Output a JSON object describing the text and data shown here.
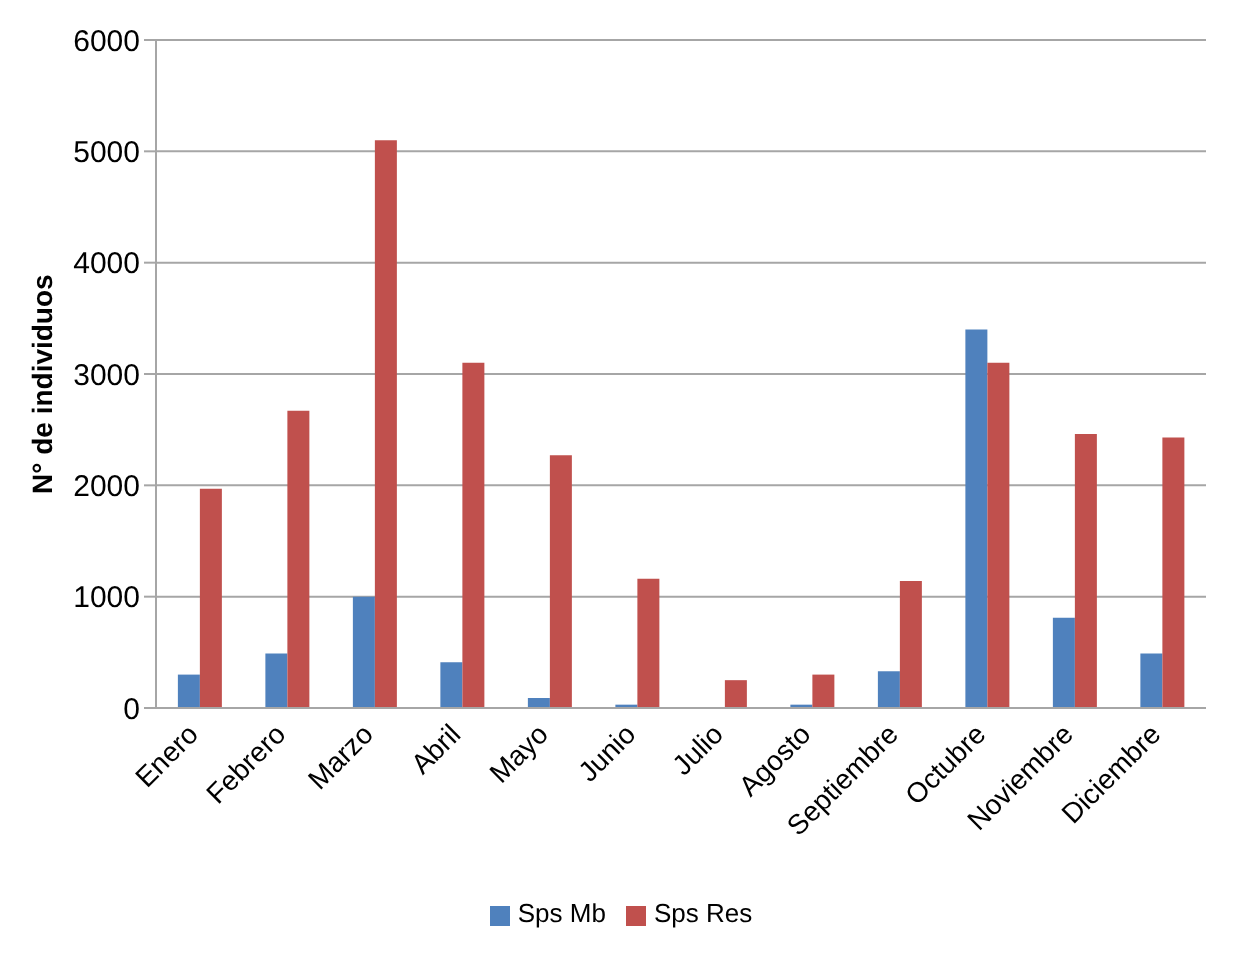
{
  "chart_data": {
    "type": "bar",
    "ylabel": "N° de individuos",
    "categories": [
      "Enero",
      "Febrero",
      "Marzo",
      "Abril",
      "Mayo",
      "Junio",
      "Julio",
      "Agosto",
      "Septiembre",
      "Octubre",
      "Noviembre",
      "Diciembre"
    ],
    "series": [
      {
        "name": "Sps Mb",
        "color": "#4f81bd",
        "values": [
          300,
          490,
          1000,
          410,
          90,
          30,
          0,
          30,
          330,
          3400,
          810,
          490
        ]
      },
      {
        "name": "Sps Res",
        "color": "#c0504d",
        "values": [
          1970,
          2670,
          5100,
          3100,
          2270,
          1160,
          250,
          300,
          1140,
          3100,
          2460,
          2430
        ]
      }
    ],
    "ylim": [
      0,
      6000
    ],
    "yticks": [
      0,
      1000,
      2000,
      3000,
      4000,
      5000,
      6000
    ],
    "grid": "y",
    "legend": "bottom"
  }
}
